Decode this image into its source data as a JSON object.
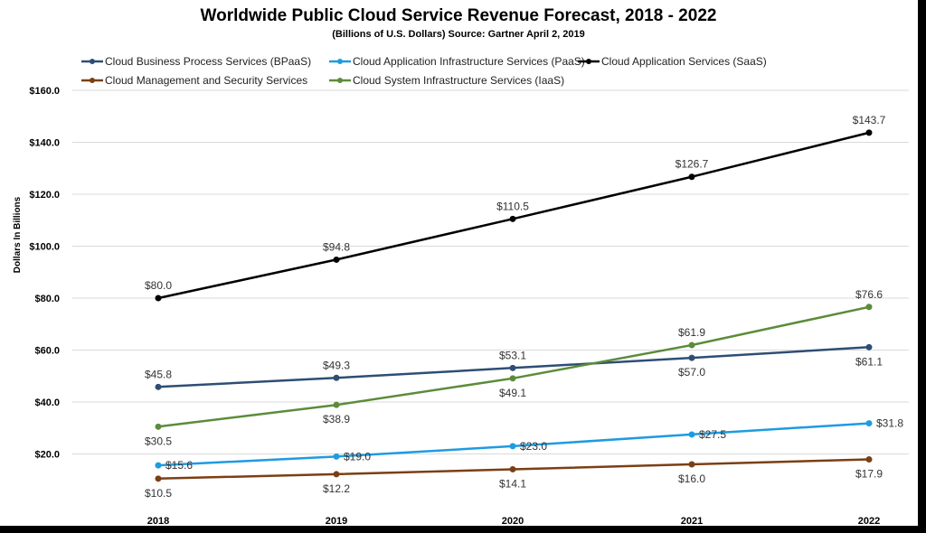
{
  "chart_data": {
    "type": "line",
    "title": "Worldwide Public Cloud Service Revenue Forecast, 2018 - 2022",
    "subtitle": "(Billions of U.S. Dollars) Source: Gartner April 2, 2019",
    "ylabel": "Dollars In Billions",
    "xlabel": "",
    "categories": [
      "2018",
      "2019",
      "2020",
      "2021",
      "2022"
    ],
    "ylim": [
      0,
      160
    ],
    "yticks": [
      20,
      40,
      60,
      80,
      100,
      120,
      140,
      160
    ],
    "ytick_labels": [
      "$20.0",
      "$40.0",
      "$60.0",
      "$80.0",
      "$100.0",
      "$120.0",
      "$140.0",
      "$160.0"
    ],
    "grid": true,
    "legend_position": "top",
    "series": [
      {
        "name": "Cloud Business Process Services (BPaaS)",
        "color": "#2e4e74",
        "values": [
          45.8,
          49.3,
          53.1,
          57.0,
          61.1
        ],
        "labels": [
          "$45.8",
          "$49.3",
          "$53.1",
          "$57.0",
          "$61.1"
        ],
        "label_pos": [
          "above",
          "above",
          "above",
          "below",
          "below"
        ]
      },
      {
        "name": "Cloud Application Infrastructure Services (PaaS)",
        "color": "#1f9be0",
        "values": [
          15.6,
          19.0,
          23.0,
          27.5,
          31.8
        ],
        "labels": [
          "$15.6",
          "$19.0",
          "$23.0",
          "$27.5",
          "$31.8"
        ],
        "label_pos": [
          "right",
          "right",
          "right",
          "right",
          "right"
        ]
      },
      {
        "name": "Cloud Application Services (SaaS)",
        "color": "#000000",
        "values": [
          80.0,
          94.8,
          110.5,
          126.7,
          143.7
        ],
        "labels": [
          "$80.0",
          "$94.8",
          "$110.5",
          "$126.7",
          "$143.7"
        ],
        "label_pos": [
          "above",
          "above",
          "above",
          "above",
          "above"
        ]
      },
      {
        "name": "Cloud Management and Security Services",
        "color": "#7b3f14",
        "values": [
          10.5,
          12.2,
          14.1,
          16.0,
          17.9
        ],
        "labels": [
          "$10.5",
          "$12.2",
          "$14.1",
          "$16.0",
          "$17.9"
        ],
        "label_pos": [
          "below",
          "below",
          "below",
          "below",
          "below"
        ]
      },
      {
        "name": "Cloud System Infrastructure Services (IaaS)",
        "color": "#5b8c3a",
        "values": [
          30.5,
          38.9,
          49.1,
          61.9,
          76.6
        ],
        "labels": [
          "$30.5",
          "$38.9",
          "$49.1",
          "$61.9",
          "$76.6"
        ],
        "label_pos": [
          "below",
          "below",
          "below",
          "above",
          "above"
        ]
      }
    ]
  }
}
